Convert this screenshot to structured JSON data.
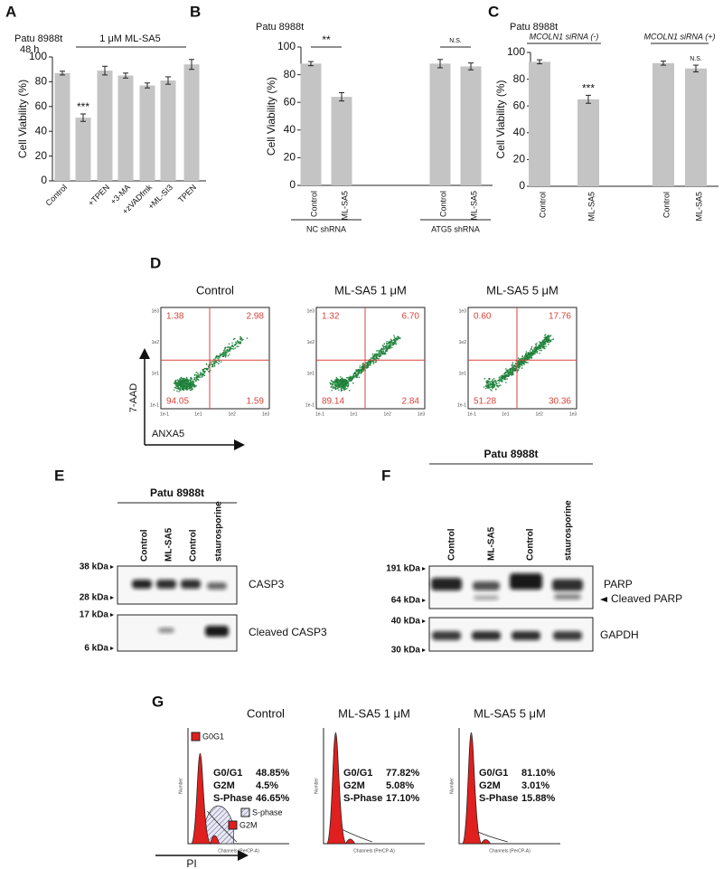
{
  "panels": [
    "A",
    "B",
    "C",
    "D",
    "E",
    "F",
    "G"
  ],
  "chart_data": [
    {
      "type": "bar",
      "title": "Patu 8988t",
      "subtitle": "48  h",
      "y_label": "Cell Viability (%)",
      "bracket": "1 μM ML-SA5",
      "categories": [
        "Control",
        null,
        "+TPEN",
        "+3-MA",
        "+zVADfmk",
        "+ML-SI3",
        "TPEN"
      ],
      "values": [
        87,
        51,
        89,
        85,
        77,
        81,
        94
      ],
      "errors": [
        1.5,
        3,
        3.5,
        2,
        2,
        3,
        4
      ],
      "significance": [
        null,
        "***",
        null,
        null,
        null,
        null,
        null
      ],
      "color": "#c4c4c4",
      "ylim": [
        0,
        100
      ],
      "yticks": [
        0,
        20,
        40,
        60,
        80,
        100
      ]
    },
    {
      "type": "bar",
      "title": "Patu 8988t",
      "y_label": "Cell Viability (%)",
      "categories": [
        "Control",
        "ML-SA5",
        "Control",
        "ML-SA5"
      ],
      "values": [
        88,
        64,
        88,
        86
      ],
      "errors": [
        1.5,
        3,
        3,
        2.5
      ],
      "groups": [
        {
          "name": "NC shRNA",
          "significance": "**"
        },
        {
          "name": "ATG5 shRNA",
          "significance": "N.S."
        }
      ],
      "color": "#c4c4c4",
      "ylim": [
        0,
        100
      ],
      "yticks": [
        0,
        20,
        40,
        60,
        80,
        100
      ]
    },
    {
      "type": "bar",
      "title": "Patu 8988t",
      "y_label": "Cell Viability (%)",
      "categories": [
        "Control",
        "ML-SA5",
        "Control",
        "ML-SA5"
      ],
      "values": [
        93,
        65,
        92,
        88
      ],
      "errors": [
        1.5,
        3,
        1.5,
        2.5
      ],
      "significance": [
        null,
        "***",
        null,
        "N.S."
      ],
      "groups": [
        {
          "name": "MCOLN1 siRNA (-)"
        },
        {
          "name": "MCOLN1 siRNA (+)"
        }
      ],
      "color": "#c4c4c4",
      "ylim": [
        0,
        100
      ],
      "yticks": [
        0,
        20,
        40,
        60,
        80,
        100
      ]
    }
  ],
  "flow_cytometry": {
    "y_label": "7-AAD",
    "x_label": "ANXA5",
    "y_ticks": [
      "1e3",
      "1e2",
      "1e1",
      "1e-1"
    ],
    "x_ticks": [
      "1e-1",
      "1e1",
      "1e2",
      "1e3"
    ],
    "plots": [
      {
        "title": "Control",
        "quadrants": [
          "1.38",
          "2.98",
          "94.05",
          "1.59"
        ]
      },
      {
        "title": "ML-SA5 1 μM",
        "quadrants": [
          "1.32",
          "6.70",
          "89.14",
          "2.84"
        ]
      },
      {
        "title": "ML-SA5 5 μM",
        "quadrants": [
          "0.60",
          "17.76",
          "51.28",
          "30.36"
        ]
      }
    ]
  },
  "blot_e": {
    "title": "Patu 8988t",
    "lanes": [
      "Control",
      "ML-SA5",
      "Control",
      "staurosporine"
    ],
    "markers": [
      "38 kDa",
      "28 kDa",
      "17 kDa",
      "6 kDa"
    ],
    "bands": [
      "CASP3",
      "Cleaved CASP3"
    ]
  },
  "blot_f": {
    "title": "Patu 8988t",
    "lanes": [
      "Control",
      "ML-SA5",
      "Control",
      "staurosporine"
    ],
    "markers": [
      "191 kDa",
      "64 kDa",
      "40 kDa",
      "30 kDa"
    ],
    "bands": [
      "PARP",
      "Cleaved PARP",
      "GAPDH"
    ]
  },
  "cell_cycle": {
    "x_label": "PI",
    "y_axis_label": "Number",
    "x_axis_label": "Channels (PerCP-A)",
    "legend": [
      "G0G1",
      "S-phase",
      "G2M"
    ],
    "plots": [
      {
        "title": "Control",
        "stats": [
          [
            "G0/G1",
            "48.85%"
          ],
          [
            "G2M",
            "4.5%"
          ],
          [
            "S-Phase",
            "46.65%"
          ]
        ]
      },
      {
        "title": "ML-SA5 1 μM",
        "stats": [
          [
            "G0/G1",
            "77.82%"
          ],
          [
            "G2M",
            "5.08%"
          ],
          [
            "S-Phase",
            "17.10%"
          ]
        ]
      },
      {
        "title": "ML-SA5 5 μM",
        "stats": [
          [
            "G0/G1",
            "81.10%"
          ],
          [
            "G2M",
            "3.01%"
          ],
          [
            "S-Phase",
            "15.88%"
          ]
        ]
      }
    ]
  }
}
